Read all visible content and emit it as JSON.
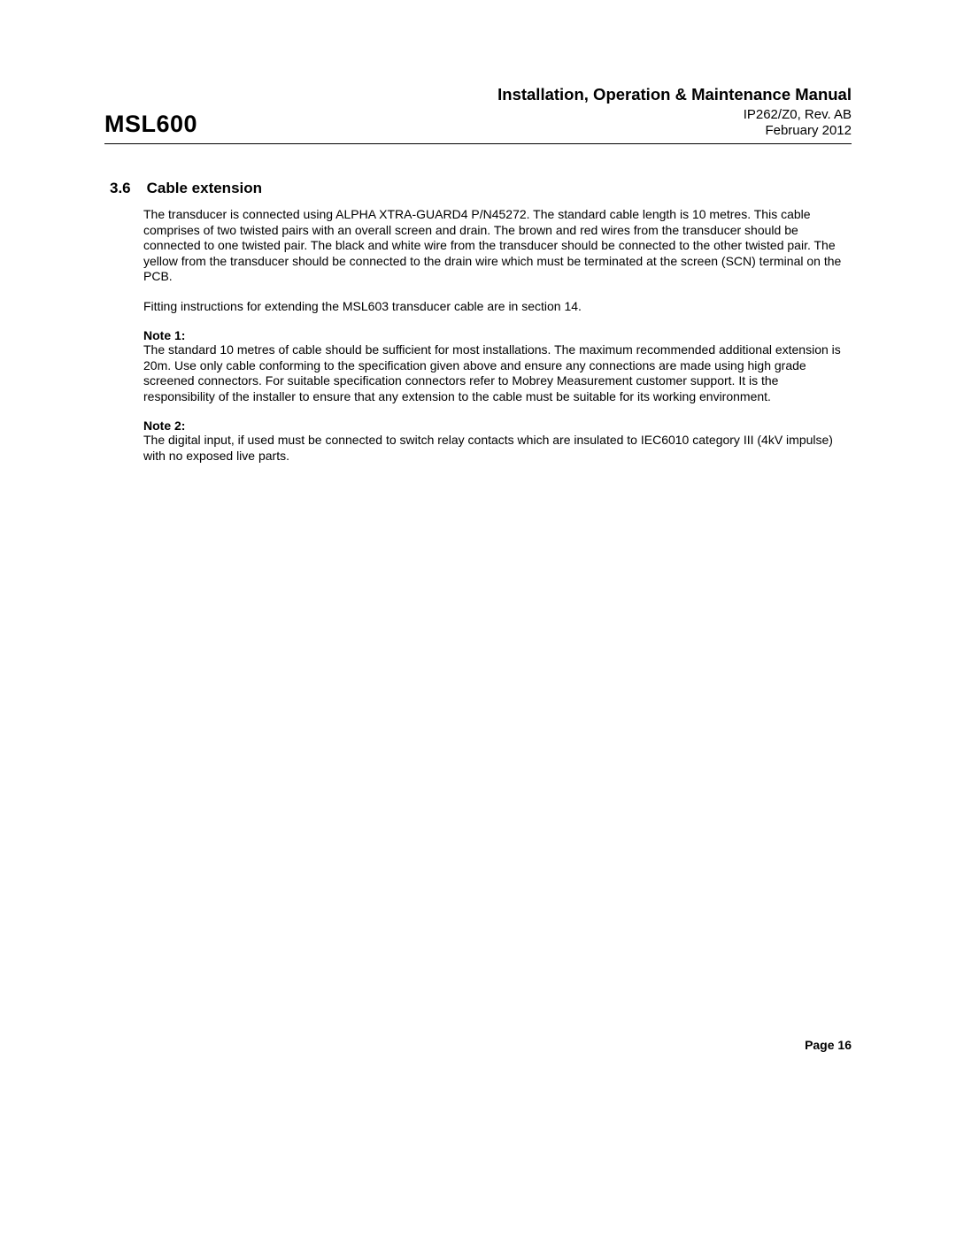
{
  "header": {
    "product": "MSL600",
    "manual_title": "Installation, Operation & Maintenance Manual",
    "doc_id": "IP262/Z0, Rev. AB",
    "date": "February 2012"
  },
  "section": {
    "number": "3.6",
    "title": "Cable extension"
  },
  "paragraphs": {
    "p1": "The transducer is connected using ALPHA XTRA-GUARD4 P/N45272. The standard cable length is 10 metres. This cable comprises of two twisted pairs with an overall screen and drain.  The brown and red wires from the transducer should be connected to one twisted pair.  The black and white wire from the transducer should be connected to the other twisted pair.  The yellow from the transducer should be connected to the drain wire which must be terminated at the screen (SCN) terminal on the PCB.",
    "p2": "Fitting instructions for extending the MSL603 transducer cable are in section 14.",
    "note1_label": "Note 1:",
    "note1_text": "The standard 10 metres of cable should be sufficient for most installations.  The maximum recommended additional extension is 20m.  Use only cable conforming to the specification given above and ensure any connections are made using high grade screened connectors.  For suitable specification connectors refer to Mobrey Measurement customer support.  It is the responsibility of the installer to ensure that any extension to the cable must be suitable for its working environment.",
    "note2_label": "Note 2:",
    "note2_text": "The digital input, if used must be connected to switch relay contacts which are insulated to IEC6010 category III (4kV impulse) with no exposed live parts."
  },
  "footer": {
    "page_label": "Page 16"
  }
}
